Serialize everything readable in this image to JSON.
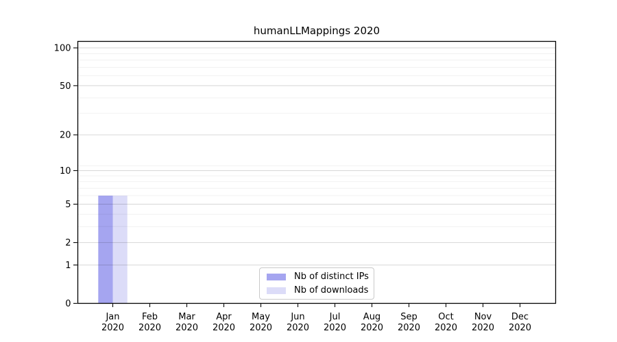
{
  "chart_data": {
    "type": "bar",
    "title": "humanLLMappings 2020",
    "categories": [
      "Jan",
      "Feb",
      "Mar",
      "Apr",
      "May",
      "Jun",
      "Jul",
      "Aug",
      "Sep",
      "Oct",
      "Nov",
      "Dec"
    ],
    "category_year": "2020",
    "series": [
      {
        "name": "Nb of distinct IPs",
        "color": "#a5a5f0",
        "values": [
          6,
          0,
          0,
          0,
          0,
          0,
          0,
          0,
          0,
          0,
          0,
          0
        ]
      },
      {
        "name": "Nb of downloads",
        "color": "#dcdcf8",
        "values": [
          6,
          0,
          0,
          0,
          0,
          0,
          0,
          0,
          0,
          0,
          0,
          0
        ]
      }
    ],
    "y_axis": {
      "scale": "log10(1+x)",
      "ticks": [
        0,
        1,
        2,
        5,
        10,
        20,
        50,
        100
      ],
      "tick_labels": [
        "0",
        "1",
        "2",
        "5",
        "10",
        "20",
        "50",
        "100"
      ],
      "minor_ticks": [
        3,
        4,
        6,
        7,
        8,
        9,
        11,
        30,
        40,
        60,
        70,
        80,
        90
      ],
      "range": [
        0,
        113
      ]
    },
    "legend": {
      "position": "lower center",
      "entries": [
        "Nb of distinct IPs",
        "Nb of downloads"
      ]
    },
    "grid": true,
    "colors": {
      "axis": "#000000",
      "grid_major": "rgba(0,0,0,0.16)",
      "grid_minor": "rgba(0,0,0,0.055)",
      "background": "#ffffff"
    }
  }
}
